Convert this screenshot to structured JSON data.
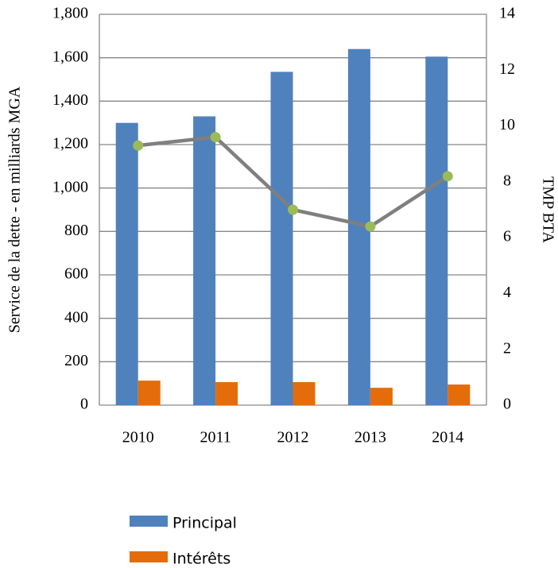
{
  "chart_data": {
    "type": "bar",
    "categories": [
      "2010",
      "2011",
      "2012",
      "2013",
      "2014"
    ],
    "series": [
      {
        "name": "Principal",
        "color": "#4f81bd",
        "values": [
          1300,
          1330,
          1535,
          1640,
          1605
        ]
      },
      {
        "name": "Intérêts",
        "color": "#e46c0a",
        "values": [
          113,
          106,
          106,
          80,
          95
        ]
      },
      {
        "type": "line",
        "axis": "y2",
        "color": "#7f7f7f",
        "marker_color": "#9bbb59",
        "values": [
          9.3,
          9.6,
          7.0,
          6.4,
          8.2
        ]
      }
    ],
    "ylabel": "Service de la dette - en milliards MGA",
    "y2label": "TMP BTA",
    "ylim": [
      0,
      1800
    ],
    "yticks": [
      0,
      200,
      400,
      600,
      800,
      {
        "value": 1000,
        "label": "1,000"
      },
      {
        "value": 1200,
        "label": "1,200"
      },
      {
        "value": 1400,
        "label": "1,400"
      },
      {
        "value": 1600,
        "label": "1,600"
      },
      {
        "value": 1800,
        "label": "1,800"
      }
    ],
    "y2lim": [
      0,
      14
    ],
    "y2ticks": [
      0,
      2,
      4,
      6,
      8,
      10,
      12,
      14
    ],
    "grid": true,
    "legend": "bottom"
  }
}
